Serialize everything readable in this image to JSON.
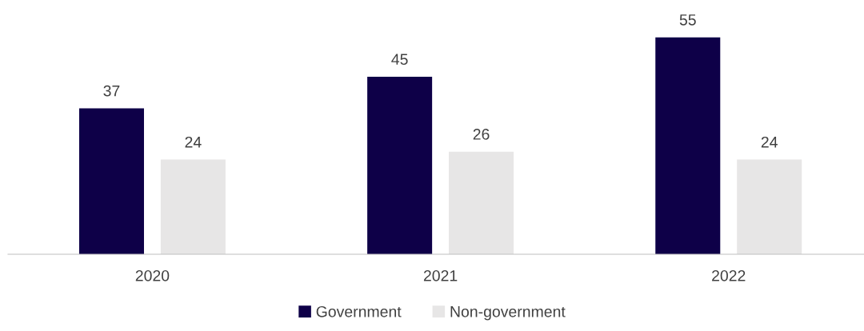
{
  "chart_data": {
    "type": "bar",
    "categories": [
      "2020",
      "2021",
      "2022"
    ],
    "series": [
      {
        "name": "Government",
        "color": "#0e0048",
        "values": [
          37,
          45,
          55
        ]
      },
      {
        "name": "Non-government",
        "color": "#e7e6e6",
        "values": [
          24,
          26,
          24
        ]
      }
    ],
    "data_labels": true,
    "grid": false,
    "legend": "bottom"
  }
}
